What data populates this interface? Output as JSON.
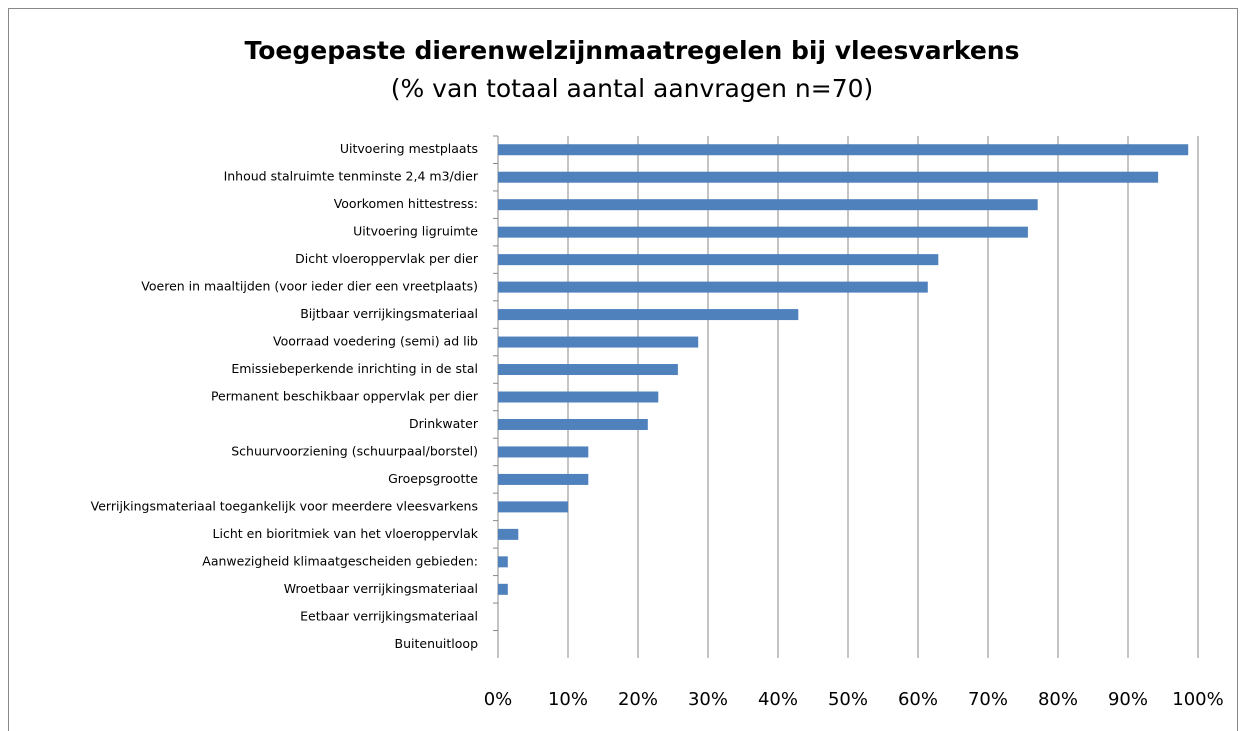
{
  "chart_data": {
    "type": "bar",
    "orientation": "horizontal",
    "title": "Toegepaste dierenwelzijnmaatregelen bij vleesvarkens",
    "subtitle": "(% van totaal aantal aanvragen n=70)",
    "categories": [
      "Uitvoering mestplaats",
      "Inhoud stalruimte tenminste 2,4 m3/dier",
      "Voorkomen hittestress:",
      "Uitvoering ligruimte",
      "Dicht vloeroppervlak per dier",
      "Voeren in maaltijden (voor ieder dier een vreetplaats)",
      "Bijtbaar verrijkingsmateriaal",
      "Voorraad voedering (semi) ad lib",
      "Emissiebeperkende inrichting in de stal",
      "Permanent beschikbaar oppervlak per dier",
      "Drinkwater",
      "Schuurvoorziening (schuurpaal/borstel)",
      "Groepsgrootte",
      "Verrijkingsmateriaal toegankelijk voor meerdere vleesvarkens",
      "Licht en bioritmiek van het vloeroppervlak",
      "Aanwezigheid klimaatgescheiden gebieden:",
      "Wroetbaar verrijkingsmateriaal",
      "Eetbaar verrijkingsmateriaal",
      "Buitenuitloop"
    ],
    "values": [
      98.6,
      94.3,
      77.1,
      75.7,
      62.9,
      61.4,
      42.9,
      28.6,
      25.7,
      22.9,
      21.4,
      12.9,
      12.9,
      10.0,
      2.9,
      1.4,
      1.4,
      0,
      0
    ],
    "color": "#4f81bd",
    "xlim": [
      0,
      100
    ],
    "xticks": [
      {
        "value": 0,
        "label": "0%"
      },
      {
        "value": 10,
        "label": "10%"
      },
      {
        "value": 20,
        "label": "20%"
      },
      {
        "value": 30,
        "label": "30%"
      },
      {
        "value": 40,
        "label": "40%"
      },
      {
        "value": 50,
        "label": "50%"
      },
      {
        "value": 60,
        "label": "60%"
      },
      {
        "value": 70,
        "label": "70%"
      },
      {
        "value": 80,
        "label": "80%"
      },
      {
        "value": 90,
        "label": "90%"
      },
      {
        "value": 100,
        "label": "100%"
      }
    ],
    "grid": true
  }
}
